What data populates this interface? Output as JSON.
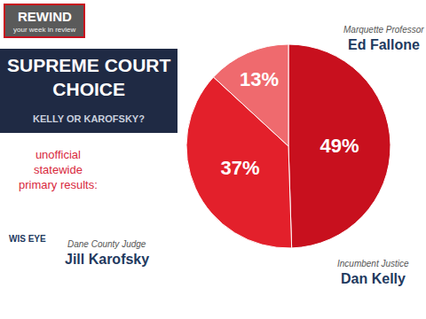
{
  "chart_data": {
    "type": "pie",
    "title": "SUPREME COURT CHOICE",
    "subtitle": "KELLY OR KAROFSKY?",
    "categories": [
      "Dan Kelly",
      "Jill Karofsky",
      "Ed Fallone"
    ],
    "category_notes": [
      "Incumbent Justice",
      "Dane County Judge",
      "Marquette Professor"
    ],
    "values": [
      49,
      37,
      13
    ],
    "value_labels": [
      "49%",
      "37%",
      "13%"
    ],
    "colors": [
      "#c8101e",
      "#e3202b",
      "#ef6a6e"
    ],
    "data_labels": true,
    "annotations": [
      "unofficial statewide primary results:",
      "REWIND",
      "your week in review",
      "WIS EYE"
    ]
  }
}
